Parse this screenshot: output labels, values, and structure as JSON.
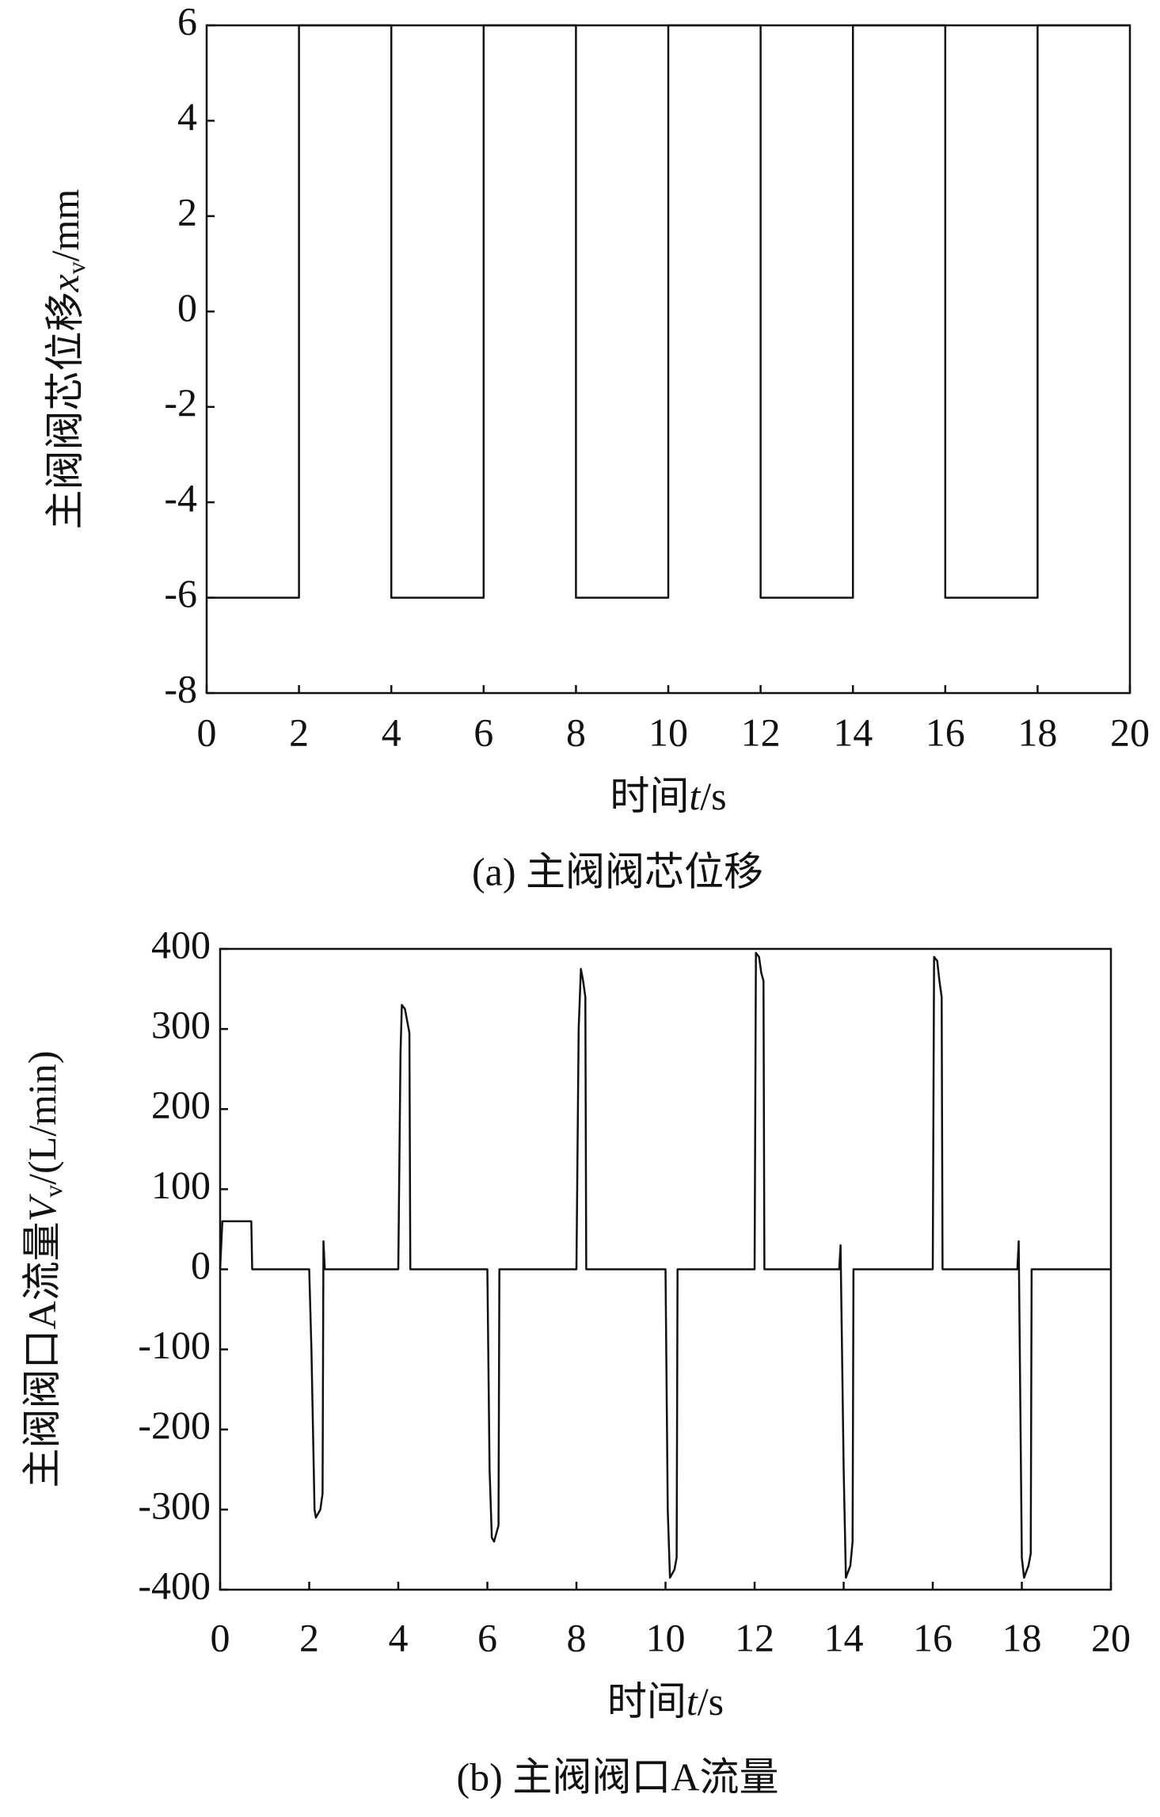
{
  "chart_data": [
    {
      "type": "line",
      "ylabel": "主阀阀芯位移",
      "ylabel_var": "x",
      "ylabel_sub": "v",
      "ylabel_unit": "/mm",
      "xlabel": "时间",
      "xlabel_var": "t",
      "xlabel_unit": "/s",
      "caption": "(a) 主阀阀芯位移",
      "xlim": [
        0,
        20
      ],
      "xticks": [
        0,
        2,
        4,
        6,
        8,
        10,
        12,
        14,
        16,
        18,
        20
      ],
      "ylim": [
        -8,
        6
      ],
      "yticks": [
        -8,
        -6,
        -4,
        -2,
        0,
        2,
        4,
        6
      ],
      "series": [
        {
          "color": "#111111",
          "x": [
            0,
            2,
            2,
            4,
            4,
            6,
            6,
            8,
            8,
            10,
            10,
            12,
            12,
            14,
            14,
            16,
            16,
            18,
            18,
            20
          ],
          "values": [
            -6,
            -6,
            6,
            6,
            -6,
            -6,
            6,
            6,
            -6,
            -6,
            6,
            6,
            -6,
            -6,
            6,
            6,
            -6,
            -6,
            6,
            6
          ]
        }
      ]
    },
    {
      "type": "line",
      "ylabel": "主阀阀口A流量",
      "ylabel_var": "V",
      "ylabel_sub": "v",
      "ylabel_unit": "/(L/min)",
      "xlabel": "时间",
      "xlabel_var": "t",
      "xlabel_unit": "/s",
      "caption": "(b) 主阀阀口A流量",
      "xlim": [
        0,
        20
      ],
      "xticks": [
        0,
        2,
        4,
        6,
        8,
        10,
        12,
        14,
        16,
        18,
        20
      ],
      "ylim": [
        -400,
        400
      ],
      "yticks": [
        -400,
        -300,
        -200,
        -100,
        0,
        100,
        200,
        300,
        400
      ],
      "series": [
        {
          "color": "#111111",
          "x": [
            0,
            0.05,
            0.6,
            0.7,
            0.72,
            2.0,
            2.05,
            2.12,
            2.15,
            2.25,
            2.3,
            2.32,
            2.35,
            4.0,
            4.05,
            4.08,
            4.15,
            4.2,
            4.25,
            4.27,
            6.0,
            6.05,
            6.1,
            6.15,
            6.2,
            6.25,
            6.27,
            8.0,
            8.05,
            8.1,
            8.15,
            8.2,
            8.22,
            10.0,
            10.05,
            10.1,
            10.2,
            10.25,
            10.27,
            12.0,
            12.03,
            12.1,
            12.15,
            12.2,
            12.22,
            13.9,
            13.93,
            14.0,
            14.05,
            14.15,
            14.2,
            14.22,
            16.0,
            16.03,
            16.1,
            16.15,
            16.2,
            16.22,
            17.9,
            17.93,
            18.0,
            18.05,
            18.15,
            18.2,
            18.22,
            20
          ],
          "values": [
            0,
            60,
            60,
            60,
            0,
            0,
            -100,
            -300,
            -310,
            -300,
            -280,
            35,
            0,
            0,
            270,
            330,
            325,
            310,
            295,
            0,
            0,
            -250,
            -335,
            -340,
            -330,
            -320,
            0,
            0,
            300,
            375,
            360,
            340,
            0,
            0,
            -300,
            -385,
            -375,
            -360,
            0,
            0,
            395,
            390,
            370,
            360,
            0,
            0,
            30,
            -250,
            -385,
            -370,
            -340,
            0,
            0,
            390,
            385,
            360,
            340,
            0,
            0,
            35,
            -360,
            -385,
            -370,
            -355,
            0,
            0
          ]
        }
      ]
    }
  ]
}
